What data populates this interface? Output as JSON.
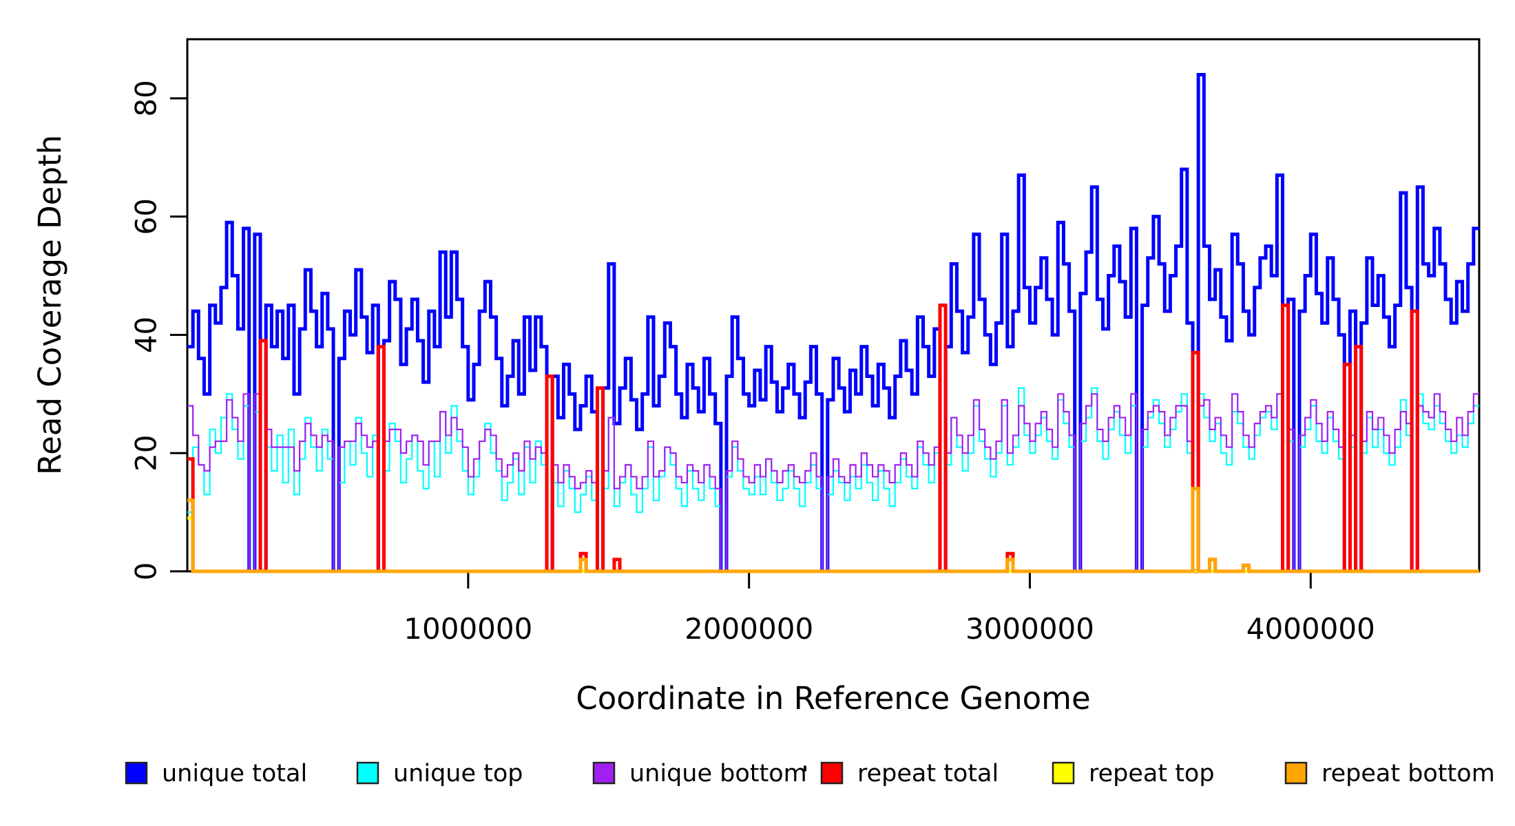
{
  "figure": {
    "background": "#ffffff",
    "axis_color": "#000000"
  },
  "chart_data": {
    "type": "line",
    "step": true,
    "title": "",
    "xlabel": "Coordinate in Reference Genome",
    "ylabel": "Read Coverage Depth",
    "xlim": [
      0,
      4600000
    ],
    "ylim": [
      0,
      90
    ],
    "grid": false,
    "legend_position": "bottom",
    "x_ticks": [
      1000000,
      2000000,
      3000000,
      4000000
    ],
    "x_tick_labels": [
      "1000000",
      "2000000",
      "3000000",
      "4000000"
    ],
    "y_ticks": [
      0,
      20,
      40,
      60,
      80
    ],
    "y_tick_labels": [
      "0",
      "20",
      "40",
      "60",
      "80"
    ],
    "n_windows": 230,
    "x_window": 20000,
    "series": [
      {
        "name": "unique total",
        "color": "#0000FF",
        "width": 5,
        "values": [
          38,
          44,
          36,
          30,
          45,
          42,
          48,
          59,
          50,
          41,
          58,
          0,
          57,
          0,
          45,
          38,
          44,
          36,
          45,
          30,
          41,
          51,
          44,
          38,
          47,
          41,
          0,
          36,
          44,
          40,
          51,
          43,
          37,
          45,
          0,
          39,
          49,
          46,
          35,
          41,
          46,
          39,
          32,
          44,
          38,
          54,
          43,
          54,
          46,
          38,
          29,
          35,
          44,
          49,
          43,
          36,
          28,
          33,
          39,
          30,
          43,
          34,
          43,
          38,
          0,
          33,
          26,
          35,
          30,
          24,
          28,
          33,
          27,
          0,
          31,
          52,
          25,
          31,
          36,
          29,
          24,
          30,
          43,
          28,
          33,
          42,
          38,
          30,
          26,
          35,
          31,
          27,
          36,
          30,
          25,
          0,
          33,
          43,
          36,
          30,
          28,
          34,
          29,
          38,
          32,
          27,
          31,
          35,
          30,
          26,
          32,
          38,
          30,
          0,
          29,
          36,
          31,
          27,
          34,
          30,
          38,
          33,
          28,
          35,
          31,
          26,
          33,
          39,
          34,
          30,
          43,
          38,
          33,
          41,
          0,
          38,
          52,
          44,
          37,
          43,
          57,
          46,
          40,
          35,
          42,
          57,
          38,
          44,
          67,
          48,
          42,
          48,
          53,
          46,
          40,
          59,
          52,
          44,
          0,
          47,
          54,
          65,
          46,
          41,
          50,
          55,
          49,
          43,
          58,
          0,
          45,
          53,
          60,
          52,
          44,
          50,
          55,
          68,
          42,
          0,
          84,
          55,
          46,
          51,
          43,
          39,
          57,
          52,
          44,
          40,
          48,
          53,
          55,
          50,
          67,
          0,
          46,
          0,
          44,
          50,
          57,
          47,
          42,
          53,
          46,
          40,
          0,
          44,
          0,
          42,
          53,
          45,
          50,
          43,
          38,
          45,
          64,
          48,
          0,
          65,
          52,
          50,
          58,
          52,
          46,
          42,
          49,
          44,
          52,
          58
        ]
      },
      {
        "name": "unique top",
        "color": "#00FFFF",
        "width": 2.2,
        "values": [
          10,
          21,
          18,
          13,
          24,
          20,
          26,
          30,
          24,
          19,
          28,
          0,
          27,
          0,
          21,
          17,
          23,
          15,
          24,
          13,
          19,
          26,
          21,
          17,
          24,
          19,
          0,
          15,
          22,
          18,
          26,
          20,
          16,
          23,
          0,
          17,
          25,
          22,
          15,
          19,
          23,
          17,
          14,
          22,
          16,
          27,
          20,
          28,
          22,
          17,
          13,
          16,
          22,
          25,
          20,
          17,
          12,
          15,
          19,
          13,
          21,
          15,
          22,
          18,
          0,
          15,
          11,
          17,
          14,
          10,
          13,
          16,
          12,
          0,
          14,
          26,
          11,
          15,
          18,
          13,
          10,
          14,
          21,
          12,
          16,
          21,
          18,
          14,
          11,
          17,
          14,
          12,
          18,
          14,
          11,
          0,
          16,
          21,
          17,
          14,
          13,
          16,
          13,
          19,
          15,
          12,
          14,
          17,
          14,
          11,
          15,
          18,
          14,
          0,
          13,
          17,
          15,
          12,
          16,
          14,
          18,
          15,
          12,
          17,
          14,
          11,
          15,
          19,
          16,
          14,
          21,
          18,
          15,
          20,
          0,
          18,
          26,
          21,
          17,
          20,
          28,
          22,
          19,
          16,
          20,
          28,
          18,
          21,
          31,
          23,
          20,
          23,
          26,
          22,
          19,
          29,
          25,
          21,
          0,
          22,
          26,
          31,
          22,
          19,
          24,
          27,
          23,
          20,
          28,
          0,
          21,
          26,
          29,
          25,
          21,
          24,
          27,
          30,
          20,
          0,
          30,
          26,
          22,
          25,
          20,
          18,
          27,
          25,
          21,
          19,
          23,
          26,
          27,
          24,
          30,
          0,
          22,
          0,
          21,
          24,
          28,
          22,
          20,
          26,
          22,
          19,
          0,
          21,
          0,
          20,
          26,
          21,
          24,
          20,
          18,
          21,
          29,
          23,
          0,
          30,
          25,
          24,
          28,
          25,
          22,
          20,
          23,
          21,
          25,
          28
        ]
      },
      {
        "name": "unique bottom",
        "color": "#A020F0",
        "width": 2.2,
        "values": [
          28,
          23,
          18,
          17,
          21,
          22,
          22,
          29,
          26,
          22,
          30,
          0,
          30,
          0,
          24,
          21,
          21,
          21,
          21,
          17,
          22,
          25,
          23,
          21,
          23,
          22,
          0,
          21,
          22,
          22,
          25,
          23,
          21,
          22,
          0,
          22,
          24,
          24,
          20,
          22,
          23,
          22,
          18,
          22,
          22,
          27,
          23,
          26,
          24,
          21,
          16,
          19,
          22,
          24,
          23,
          19,
          16,
          18,
          20,
          17,
          22,
          19,
          21,
          20,
          0,
          18,
          15,
          18,
          16,
          14,
          15,
          17,
          15,
          0,
          17,
          26,
          14,
          16,
          18,
          16,
          14,
          16,
          22,
          16,
          17,
          21,
          20,
          16,
          15,
          18,
          17,
          15,
          18,
          16,
          14,
          0,
          17,
          22,
          19,
          16,
          15,
          18,
          16,
          19,
          17,
          15,
          17,
          18,
          16,
          15,
          17,
          20,
          16,
          0,
          16,
          19,
          16,
          15,
          18,
          16,
          20,
          18,
          16,
          18,
          17,
          15,
          18,
          20,
          18,
          16,
          22,
          20,
          18,
          21,
          0,
          20,
          26,
          23,
          20,
          23,
          29,
          24,
          21,
          19,
          22,
          29,
          20,
          23,
          28,
          25,
          22,
          25,
          27,
          24,
          21,
          30,
          27,
          23,
          0,
          25,
          28,
          30,
          24,
          22,
          26,
          28,
          26,
          23,
          30,
          0,
          24,
          27,
          28,
          27,
          23,
          26,
          28,
          28,
          22,
          0,
          28,
          29,
          24,
          26,
          23,
          21,
          30,
          27,
          23,
          21,
          25,
          27,
          28,
          26,
          30,
          0,
          24,
          0,
          23,
          26,
          29,
          25,
          22,
          27,
          24,
          21,
          0,
          23,
          0,
          22,
          27,
          24,
          26,
          23,
          20,
          24,
          27,
          25,
          0,
          28,
          27,
          26,
          30,
          27,
          24,
          22,
          26,
          23,
          27,
          30
        ]
      },
      {
        "name": "repeat total",
        "color": "#FF0000",
        "width": 5,
        "base": 0,
        "spikes": [
          [
            0,
            19
          ],
          [
            13,
            39
          ],
          [
            34,
            38
          ],
          [
            64,
            33
          ],
          [
            70,
            3
          ],
          [
            73,
            31
          ],
          [
            76,
            2
          ],
          [
            134,
            45
          ],
          [
            146,
            3
          ],
          [
            179,
            37
          ],
          [
            182,
            2
          ],
          [
            188,
            1
          ],
          [
            195,
            45
          ],
          [
            206,
            35
          ],
          [
            208,
            38
          ],
          [
            218,
            44
          ]
        ]
      },
      {
        "name": "repeat top",
        "color": "#FFFF00",
        "width": 4,
        "base": 0,
        "spikes": [
          [
            0,
            9
          ]
        ]
      },
      {
        "name": "repeat bottom",
        "color": "#FFA500",
        "width": 5,
        "base": 0,
        "spikes": [
          [
            0,
            12
          ],
          [
            70,
            2
          ],
          [
            146,
            2
          ],
          [
            179,
            14
          ],
          [
            182,
            2
          ],
          [
            188,
            1
          ]
        ]
      }
    ]
  },
  "legend": {
    "square_color_border": "#222222"
  }
}
